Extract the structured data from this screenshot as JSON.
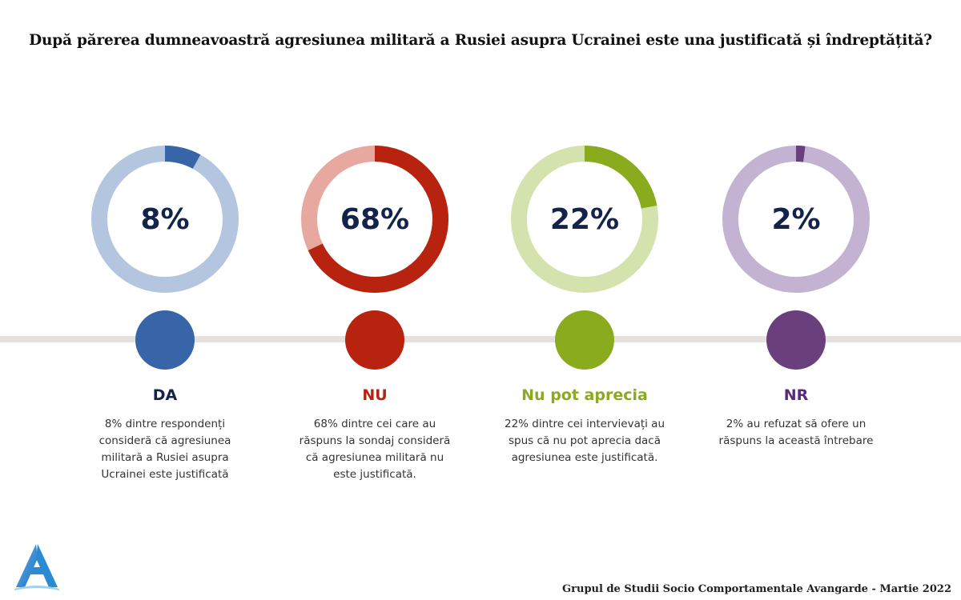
{
  "title": "După părerea dumneavoastră agresiunea militară a Rusiei asupra Ucrainei este una justificată și îndreptățită?",
  "chart_data": {
    "type": "pie",
    "categories": [
      "DA",
      "NU",
      "Nu pot aprecia",
      "NR"
    ],
    "values": [
      8,
      68,
      22,
      2
    ],
    "value_labels": [
      "8%",
      "68%",
      "22%",
      "2%"
    ],
    "descriptions": [
      "8% dintre respondenți consideră că agresiunea militară a Rusiei asupra Ucrainei este justificată",
      "68% dintre cei care au răspuns la sondaj consideră că agresiunea militară nu este justificată.",
      "22% dintre cei intervievați au spus că nu pot aprecia dacă agresiunea este justificată.",
      "2% au refuzat să ofere un răspuns la această întrebare"
    ],
    "colors": {
      "main": [
        "#3864a8",
        "#b7230f",
        "#8aab1e",
        "#6a3f7e"
      ],
      "track": [
        "#b3c5df",
        "#e6a89f",
        "#d4e2ae",
        "#c3b2d2"
      ]
    }
  },
  "footer": "Grupul de Studii Socio Comportamentale Avangarde   - Martie 2022",
  "logo": {
    "icon": "avangarde-logo-icon",
    "color": "#2a8ad4"
  }
}
